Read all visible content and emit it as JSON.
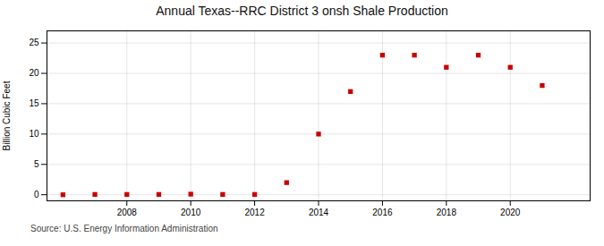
{
  "chart_data": {
    "type": "scatter",
    "title": "Annual Texas--RRC District 3 onsh Shale Production",
    "ylabel": "Billion Cubic Feet",
    "source": "Source: U.S. Energy Information Administration",
    "x": [
      2006,
      2007,
      2008,
      2009,
      2010,
      2011,
      2012,
      2013,
      2014,
      2015,
      2016,
      2017,
      2018,
      2019,
      2020,
      2021
    ],
    "values": [
      0.0,
      0.05,
      0.05,
      0.05,
      0.1,
      0.05,
      0.05,
      2.0,
      10.0,
      17.0,
      23.0,
      23.0,
      21.0,
      23.0,
      21.0,
      18.0
    ],
    "color": "#cc0000",
    "marker": "square",
    "xlim": [
      2005.5,
      2022.5
    ],
    "ylim": [
      -1,
      27
    ],
    "xticks": [
      2008,
      2010,
      2012,
      2014,
      2016,
      2018,
      2020
    ],
    "yticks": [
      0,
      5,
      10,
      15,
      20,
      25
    ],
    "grid": true
  }
}
